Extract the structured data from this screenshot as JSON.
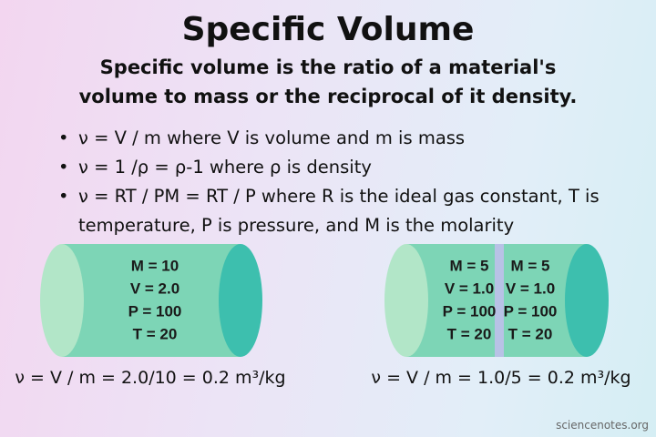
{
  "header": {
    "title": "Specific Volume",
    "subtitle_lines": [
      "Specific volume is the ratio of a material's",
      "volume to mass or the reciprocal of it density."
    ]
  },
  "bullets": [
    "ν = V / m where V is volume and m is mass",
    "ν = 1 /ρ = ρ-1 where ρ is density",
    "ν = RT / PM = RT / P where R is the ideal gas constant, T is temperature, P is pressure, and M is the molarity"
  ],
  "left_cylinder": {
    "labels": [
      "M = 10",
      "V = 2.0",
      "P = 100",
      "T = 20"
    ],
    "formula": "ν = V / m = 2.0/10 = 0.2 m³/kg"
  },
  "right_cylinder": {
    "left_labels": [
      "M = 5",
      "V = 1.0",
      "P = 100",
      "T = 20"
    ],
    "right_labels": [
      "M = 5",
      "V = 1.0",
      "P = 100",
      "T = 20"
    ],
    "formula": "ν = V / m = 1.0/5 = 0.2 m³/kg"
  },
  "credit": "sciencenotes.org"
}
